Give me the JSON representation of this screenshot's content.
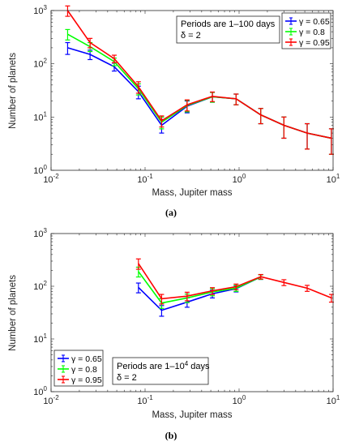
{
  "chart_data": [
    {
      "type": "line",
      "xscale": "log",
      "yscale": "log",
      "xlim": [
        0.01,
        10
      ],
      "ylim": [
        1,
        1000
      ],
      "xlabel": "Mass, Jupiter mass",
      "ylabel": "Number of planets",
      "caption": "(a)",
      "x_ticks": [
        "10-2",
        "10-1",
        "100",
        "101"
      ],
      "y_ticks": [
        "100",
        "101",
        "102",
        "103"
      ],
      "annotation": {
        "line1": "Periods are 1–100 days",
        "line2": "δ = 2"
      },
      "legend_position": "top-right",
      "x": [
        0.015,
        0.026,
        0.047,
        0.085,
        0.15,
        0.28,
        0.52,
        0.93,
        1.7,
        3.0,
        5.3,
        9.6
      ],
      "series": [
        {
          "name": "γ = 0.65",
          "color": "#0000ff",
          "values": [
            200,
            150,
            88,
            30,
            7,
            16,
            24,
            22,
            11,
            7,
            5,
            4
          ],
          "err_low": [
            50,
            30,
            15,
            8,
            2,
            4,
            5,
            5,
            3.5,
            3,
            2.5,
            2
          ],
          "err_high": [
            50,
            30,
            15,
            8,
            2,
            4,
            5,
            5,
            3.5,
            3,
            2.5,
            2
          ]
        },
        {
          "name": "γ = 0.8",
          "color": "#00ff00",
          "values": [
            360,
            210,
            110,
            34,
            8,
            16.5,
            24,
            22,
            11,
            7,
            5,
            4
          ],
          "err_low": [
            80,
            40,
            18,
            8,
            2,
            4,
            5,
            5,
            3.5,
            3,
            2.5,
            2
          ],
          "err_high": [
            80,
            40,
            18,
            8,
            2,
            4,
            5,
            5,
            3.5,
            3,
            2.5,
            2
          ]
        },
        {
          "name": "γ = 0.95",
          "color": "#ff0000",
          "values": [
            1000,
            250,
            125,
            37,
            8.5,
            17,
            24.5,
            22,
            11,
            7,
            5,
            4
          ],
          "err_low": [
            220,
            50,
            20,
            9,
            2,
            4,
            5,
            5,
            3.5,
            3,
            2.5,
            2
          ],
          "err_high": [
            220,
            50,
            20,
            9,
            2,
            4,
            5,
            5,
            3.5,
            3,
            2.5,
            2
          ]
        }
      ]
    },
    {
      "type": "line",
      "xscale": "log",
      "yscale": "log",
      "xlim": [
        0.01,
        10
      ],
      "ylim": [
        1,
        1000
      ],
      "xlabel": "Mass, Jupiter mass",
      "ylabel": "Number of planets",
      "caption": "(b)",
      "x_ticks": [
        "10-2",
        "10-1",
        "100",
        "101"
      ],
      "y_ticks": [
        "100",
        "101",
        "102",
        "103"
      ],
      "annotation": {
        "line1_pre": "Periods are 1–10",
        "line1_sup": "4",
        "line1_post": " days",
        "line2": "δ = 2"
      },
      "legend_position": "bottom-left",
      "x": [
        0.085,
        0.15,
        0.28,
        0.52,
        0.93,
        1.7,
        3.0,
        5.3,
        9.6
      ],
      "series": [
        {
          "name": "γ = 0.65",
          "color": "#0000ff",
          "x": [
            0.085,
            0.15,
            0.28,
            0.52,
            0.93,
            1.7
          ],
          "values": [
            95,
            35,
            50,
            72,
            90,
            150
          ],
          "err_low": [
            20,
            8,
            10,
            12,
            12,
            15
          ],
          "err_high": [
            20,
            8,
            10,
            12,
            12,
            15
          ]
        },
        {
          "name": "γ = 0.8",
          "color": "#00ff00",
          "x": [
            0.085,
            0.15,
            0.28,
            0.52,
            0.93,
            1.7
          ],
          "values": [
            190,
            48,
            60,
            78,
            92,
            150
          ],
          "err_low": [
            40,
            10,
            11,
            12,
            12,
            15
          ],
          "err_high": [
            40,
            10,
            11,
            12,
            12,
            15
          ]
        },
        {
          "name": "γ = 0.95",
          "color": "#ff0000",
          "x": [
            0.085,
            0.15,
            0.28,
            0.52,
            0.93,
            1.7,
            3.0,
            5.3,
            9.6
          ],
          "values": [
            270,
            58,
            65,
            82,
            98,
            152,
            118,
            92,
            60
          ],
          "err_low": [
            60,
            12,
            12,
            12,
            12,
            15,
            15,
            12,
            10
          ],
          "err_high": [
            60,
            12,
            12,
            12,
            12,
            15,
            15,
            12,
            10
          ]
        }
      ]
    }
  ]
}
